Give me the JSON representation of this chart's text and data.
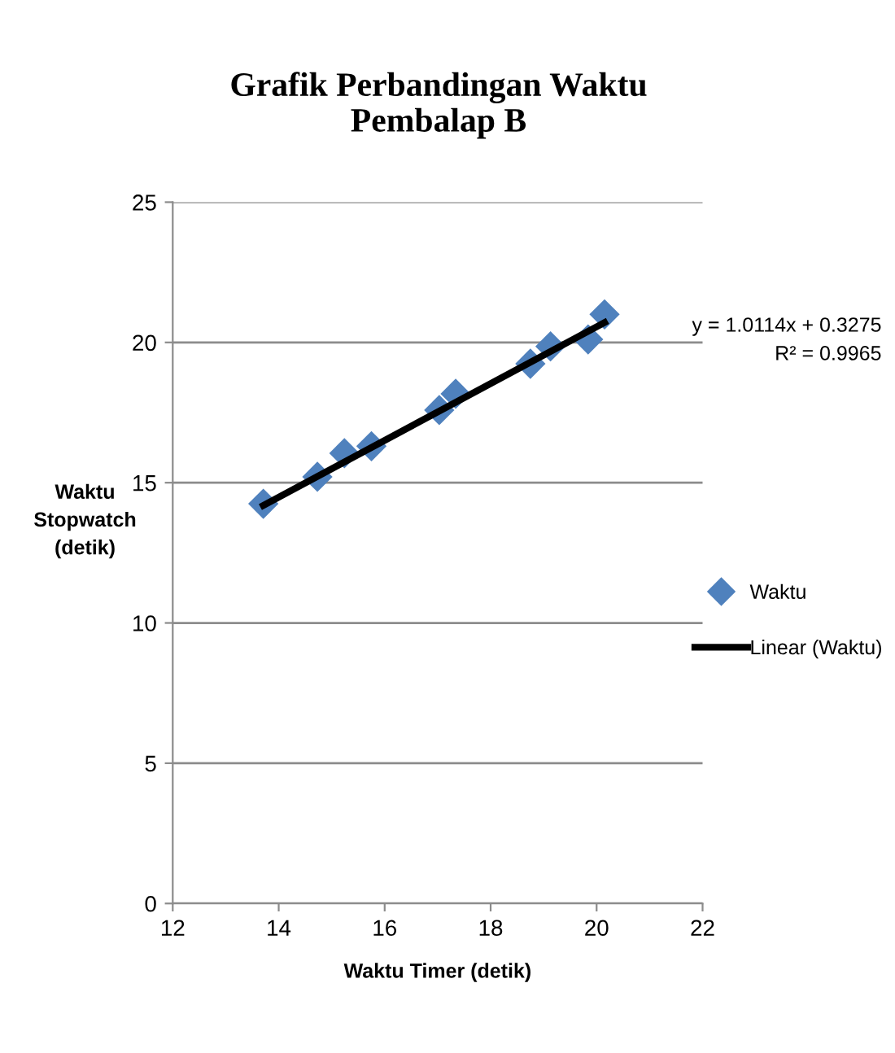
{
  "chart_data": {
    "type": "scatter",
    "title": "Grafik Perbandingan Waktu Pembalap B",
    "xlabel": "Waktu Timer (detik)",
    "ylabel": "Waktu Stopwatch (detik)",
    "xlim": [
      12,
      22
    ],
    "xticks": [
      12,
      14,
      16,
      18,
      20,
      22
    ],
    "ylim": [
      0,
      25
    ],
    "yticks": [
      0,
      5,
      10,
      15,
      20,
      25
    ],
    "grid": "y",
    "legend": "right",
    "marker": "diamond",
    "series": [
      {
        "name": "Waktu",
        "color": "#4f81bd",
        "x": [
          13.71,
          14.73,
          15.24,
          15.75,
          17.03,
          17.34,
          18.75,
          19.13,
          19.84,
          20.15
        ],
        "values": [
          14.25,
          15.21,
          16.05,
          16.3,
          17.59,
          18.17,
          19.24,
          19.86,
          20.11,
          21.0
        ]
      },
      {
        "name": "Linear (Waktu)",
        "type": "line",
        "color": "#000000",
        "x": [
          13.71,
          20.15
        ],
        "values": [
          14.19,
          20.71
        ],
        "marker": "none",
        "line_style": "solid"
      }
    ],
    "annotations": [
      "y = 1.0114x + 0.3275",
      "R² = 0.9965"
    ]
  }
}
